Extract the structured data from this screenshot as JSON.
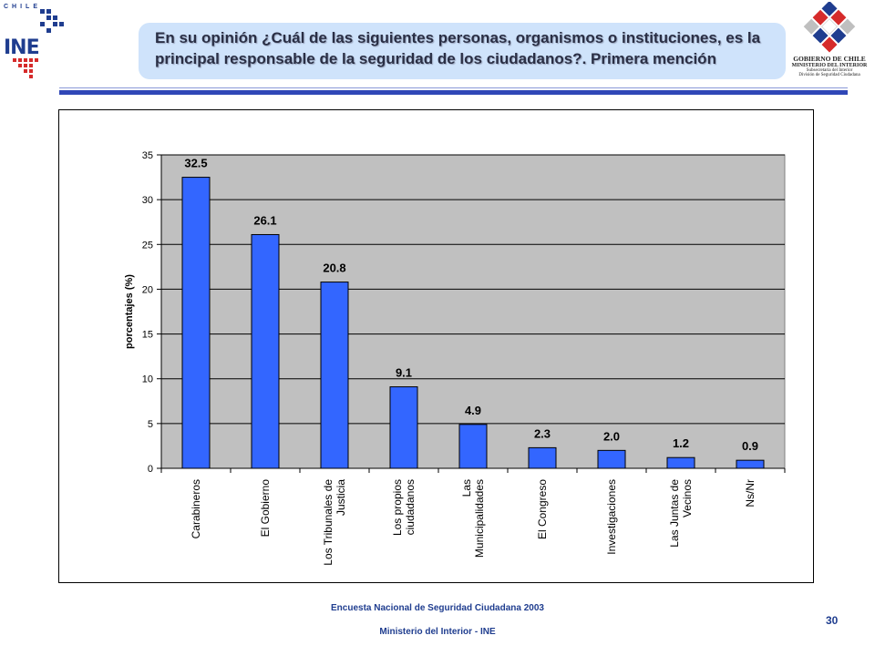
{
  "header": {
    "title": "En su opinión ¿Cuál de las siguientes personas, organismos o instituciones, es la principal responsable de la seguridad de los ciudadanos?. Primera mención"
  },
  "logo_left": {
    "country": "CHILE",
    "brand": "INE"
  },
  "logo_right": {
    "line1": "GOBIERNO DE CHILE",
    "line2": "MINISTERIO DEL INTERIOR",
    "line3": "Subsecretaría del Interior",
    "line4": "División de Seguridad Ciudadana"
  },
  "colors": {
    "bar": "#3366ff",
    "plot_bg": "#c0c0c0",
    "title_bg": "#cfe3fb",
    "rule": "#3047b7"
  },
  "chart_data": {
    "type": "bar",
    "title": "",
    "xlabel": "",
    "ylabel": "porcentajes (%)",
    "ylim": [
      0,
      35
    ],
    "yticks": [
      0,
      5,
      10,
      15,
      20,
      25,
      30,
      35
    ],
    "grid": true,
    "categories": [
      [
        "Carabineros"
      ],
      [
        "El Gobierno"
      ],
      [
        "Los Tribunales de",
        "Justicia"
      ],
      [
        "Los propios",
        "ciudadanos"
      ],
      [
        "Las",
        "Municipalidades"
      ],
      [
        "El Congreso"
      ],
      [
        "Investigaciones"
      ],
      [
        "Las Juntas de",
        "Vecinos"
      ],
      [
        "Ns/Nr"
      ]
    ],
    "values": [
      32.5,
      26.1,
      20.8,
      9.1,
      4.9,
      2.3,
      2.0,
      1.2,
      0.9
    ],
    "value_labels": [
      "32.5",
      "26.1",
      "20.8",
      "9.1",
      "4.9",
      "2.3",
      "2.0",
      "1.2",
      "0.9"
    ]
  },
  "footer": {
    "line1": "Encuesta Nacional de Seguridad Ciudadana 2003",
    "line2": "Ministerio del Interior - INE",
    "page": "30"
  }
}
